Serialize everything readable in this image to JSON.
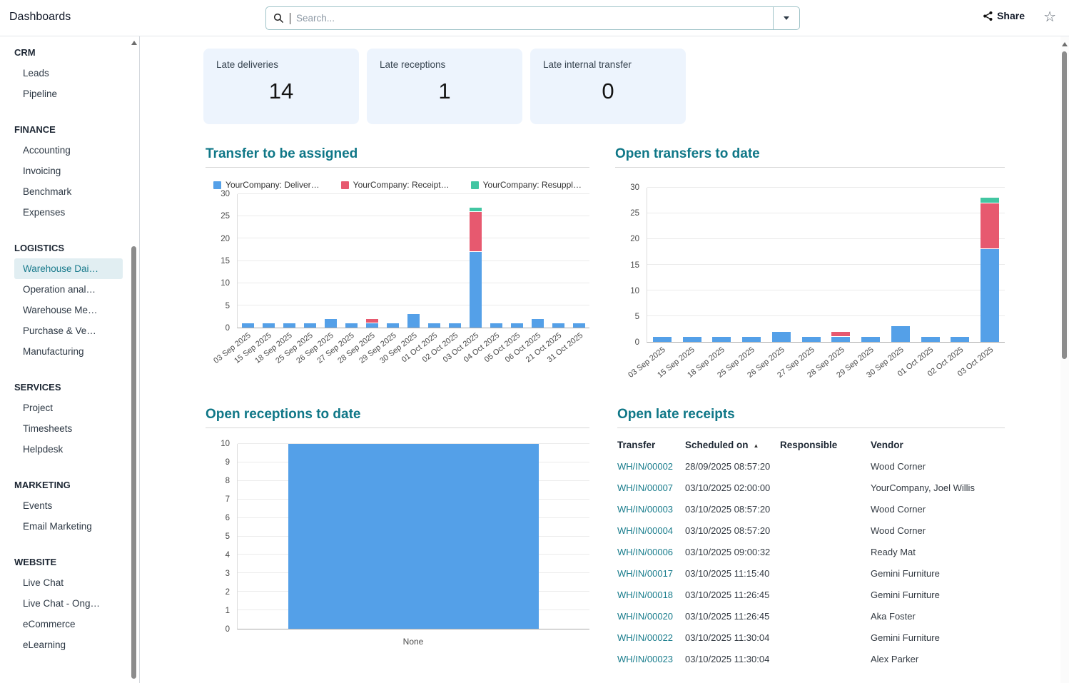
{
  "topbar": {
    "title": "Dashboards",
    "search": {
      "placeholder": "Search..."
    },
    "share_label": "Share"
  },
  "icons": {
    "search_icon": "magnifier",
    "search_dropdown_icon": "caret-down",
    "share_icon": "share-nodes",
    "favorite_icon": "star-outline",
    "sort_icon": "triangle-up",
    "scroll_up_icon": "triangle-up",
    "sort_glyph": "▲"
  },
  "colors": {
    "accent_teal": "#0f7787",
    "link_teal": "#187c8c",
    "chart_blue": "#54a0e8",
    "chart_red": "#e7596f",
    "chart_green": "#42c6a2",
    "kpi_card_bg": "#edf4fd",
    "selected_item_bg": "#e1eef2"
  },
  "sidebar": {
    "sections": [
      {
        "label": "CRM",
        "items": [
          {
            "label": "Leads"
          },
          {
            "label": "Pipeline"
          }
        ]
      },
      {
        "label": "FINANCE",
        "items": [
          {
            "label": "Accounting"
          },
          {
            "label": "Invoicing"
          },
          {
            "label": "Benchmark"
          },
          {
            "label": "Expenses"
          }
        ]
      },
      {
        "label": "LOGISTICS",
        "items": [
          {
            "label": "Warehouse Dai…",
            "selected": true
          },
          {
            "label": "Operation anal…"
          },
          {
            "label": "Warehouse Me…"
          },
          {
            "label": "Purchase & Ve…"
          },
          {
            "label": "Manufacturing"
          }
        ]
      },
      {
        "label": "SERVICES",
        "items": [
          {
            "label": "Project"
          },
          {
            "label": "Timesheets"
          },
          {
            "label": "Helpdesk"
          }
        ]
      },
      {
        "label": "MARKETING",
        "items": [
          {
            "label": "Events"
          },
          {
            "label": "Email Marketing"
          }
        ]
      },
      {
        "label": "WEBSITE",
        "items": [
          {
            "label": "Live Chat"
          },
          {
            "label": "Live Chat - Ong…"
          },
          {
            "label": "eCommerce"
          },
          {
            "label": "eLearning"
          }
        ]
      }
    ]
  },
  "kpis": [
    {
      "label": "Late deliveries",
      "value": "14"
    },
    {
      "label": "Late receptions",
      "value": "1"
    },
    {
      "label": "Late internal transfer",
      "value": "0"
    }
  ],
  "chart_data": [
    {
      "type": "bar",
      "stacked": true,
      "title": "Transfer to be assigned",
      "legend_position": "top",
      "grid": true,
      "x_label_rotation": -38,
      "ylim": [
        0,
        30
      ],
      "yticks": [
        0,
        5,
        10,
        15,
        20,
        25,
        30
      ],
      "categories": [
        "03 Sep 2025",
        "15 Sep 2025",
        "18 Sep 2025",
        "25 Sep 2025",
        "26 Sep 2025",
        "27 Sep 2025",
        "28 Sep 2025",
        "29 Sep 2025",
        "30 Sep 2025",
        "01 Oct 2025",
        "02 Oct 2025",
        "03 Oct 2025",
        "04 Oct 2025",
        "05 Oct 2025",
        "06 Oct 2025",
        "21 Oct 2025",
        "31 Oct 2025"
      ],
      "series": [
        {
          "name": "YourCompany: Deliver…",
          "color": "#54a0e8",
          "values": [
            1,
            1,
            1,
            1,
            2,
            1,
            1,
            1,
            3,
            1,
            1,
            17,
            1,
            1,
            2,
            1,
            1
          ]
        },
        {
          "name": "YourCompany: Receipt…",
          "color": "#e7596f",
          "values": [
            0,
            0,
            0,
            0,
            0,
            0,
            1,
            0,
            0,
            0,
            0,
            9,
            0,
            0,
            0,
            0,
            0
          ]
        },
        {
          "name": "YourCompany: Resuppl…",
          "color": "#42c6a2",
          "values": [
            0,
            0,
            0,
            0,
            0,
            0,
            0,
            0,
            0,
            0,
            0,
            1,
            0,
            0,
            0,
            0,
            0
          ]
        }
      ]
    },
    {
      "type": "bar",
      "stacked": true,
      "title": "Open transfers to date",
      "legend_position": "none",
      "grid": true,
      "x_label_rotation": -38,
      "ylim": [
        0,
        30
      ],
      "yticks": [
        0,
        5,
        10,
        15,
        20,
        25,
        30
      ],
      "categories": [
        "03 Sep 2025",
        "15 Sep 2025",
        "18 Sep 2025",
        "25 Sep 2025",
        "26 Sep 2025",
        "27 Sep 2025",
        "28 Sep 2025",
        "29 Sep 2025",
        "30 Sep 2025",
        "01 Oct 2025",
        "02 Oct 2025",
        "03 Oct 2025"
      ],
      "series": [
        {
          "name": "YourCompany: Deliver…",
          "color": "#54a0e8",
          "values": [
            1,
            1,
            1,
            1,
            2,
            1,
            1,
            1,
            3,
            1,
            1,
            18
          ]
        },
        {
          "name": "YourCompany: Receipt…",
          "color": "#e7596f",
          "values": [
            0,
            0,
            0,
            0,
            0,
            0,
            1,
            0,
            0,
            0,
            0,
            9
          ]
        },
        {
          "name": "YourCompany: Resuppl…",
          "color": "#42c6a2",
          "values": [
            0,
            0,
            0,
            0,
            0,
            0,
            0,
            0,
            0,
            0,
            0,
            1
          ]
        }
      ]
    },
    {
      "type": "bar",
      "stacked": false,
      "title": "Open receptions to date",
      "legend_position": "none",
      "grid": true,
      "x_label_rotation": 0,
      "ylim": [
        0,
        10
      ],
      "yticks": [
        0,
        1,
        2,
        3,
        4,
        5,
        6,
        7,
        8,
        9,
        10
      ],
      "categories": [
        "None"
      ],
      "series": [
        {
          "name": "Open receptions",
          "color": "#54a0e8",
          "values": [
            10
          ]
        }
      ]
    }
  ],
  "table": {
    "title": "Open late receipts",
    "columns": [
      {
        "label": "Transfer"
      },
      {
        "label": "Scheduled on",
        "sorted": "asc"
      },
      {
        "label": "Responsible"
      },
      {
        "label": "Vendor"
      }
    ],
    "rows": [
      [
        "WH/IN/00002",
        "28/09/2025 08:57:20",
        "",
        "Wood Corner"
      ],
      [
        "WH/IN/00007",
        "03/10/2025 02:00:00",
        "",
        "YourCompany, Joel Willis"
      ],
      [
        "WH/IN/00003",
        "03/10/2025 08:57:20",
        "",
        "Wood Corner"
      ],
      [
        "WH/IN/00004",
        "03/10/2025 08:57:20",
        "",
        "Wood Corner"
      ],
      [
        "WH/IN/00006",
        "03/10/2025 09:00:32",
        "",
        "Ready Mat"
      ],
      [
        "WH/IN/00017",
        "03/10/2025 11:15:40",
        "",
        "Gemini Furniture"
      ],
      [
        "WH/IN/00018",
        "03/10/2025 11:26:45",
        "",
        "Gemini Furniture"
      ],
      [
        "WH/IN/00020",
        "03/10/2025 11:26:45",
        "",
        "Aka Foster"
      ],
      [
        "WH/IN/00022",
        "03/10/2025 11:30:04",
        "",
        "Gemini Furniture"
      ],
      [
        "WH/IN/00023",
        "03/10/2025 11:30:04",
        "",
        "Alex Parker"
      ]
    ]
  }
}
